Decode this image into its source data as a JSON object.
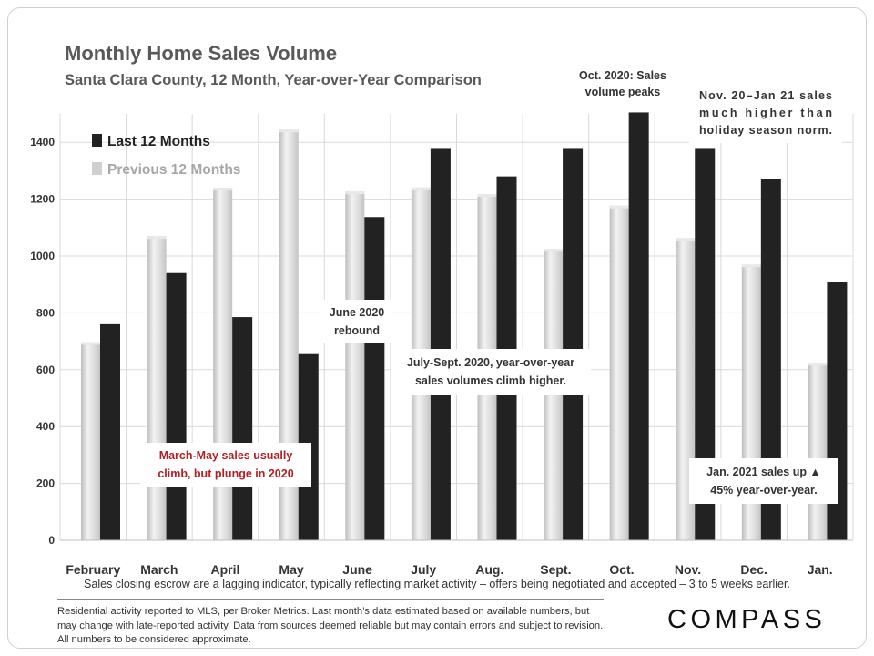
{
  "title": "Monthly Home Sales Volume",
  "subtitle": "Santa Clara County, 12 Month, Year-over-Year  Comparison",
  "colors": {
    "last": "#222222",
    "previous": "#cfcfcf",
    "previous_light": "#f2f2f2",
    "grid": "#d9d9d9",
    "red_text": "#b21f24"
  },
  "chart_data": {
    "type": "bar",
    "categories": [
      "February",
      "March",
      "April",
      "May",
      "June",
      "July",
      "Aug.",
      "Sept.",
      "Oct.",
      "Nov.",
      "Dec.",
      "Jan."
    ],
    "series": [
      {
        "name": "Last 12 Months",
        "values": [
          760,
          940,
          785,
          658,
          1137,
          1380,
          1280,
          1380,
          1505,
          1380,
          1270,
          910
        ]
      },
      {
        "name": "Previous 12 Months",
        "values": [
          697,
          1070,
          1240,
          1445,
          1227,
          1242,
          1218,
          1025,
          1177,
          1063,
          970,
          624
        ]
      }
    ],
    "yticks": [
      0,
      200,
      400,
      600,
      800,
      1000,
      1200,
      1400
    ],
    "ylim": [
      0,
      1500
    ],
    "grid": true,
    "legend": "top-left"
  },
  "annotations": [
    {
      "id": "may-plunge",
      "lines": [
        "March-May sales usually",
        "climb, but plunge in 2020"
      ]
    },
    {
      "id": "june-rebound",
      "lines": [
        "June 2020",
        "rebound"
      ]
    },
    {
      "id": "july-sept",
      "lines": [
        "July-Sept. 2020, year-over-year",
        "sales volumes climb higher."
      ]
    },
    {
      "id": "oct-peak",
      "lines": [
        "Oct. 2020: Sales",
        "volume peaks"
      ]
    },
    {
      "id": "nov-jan",
      "lines": [
        "Nov. 20–Jan 21 sales",
        "much higher than",
        "holiday season norm."
      ]
    },
    {
      "id": "jan-up",
      "lines": [
        "Jan. 2021 sales up ▲",
        "45% year-over-year."
      ]
    }
  ],
  "footnote": "Sales closing escrow are a lagging indicator, typically reflecting market activity – offers being negotiated and accepted – 3 to 5 weeks earlier.",
  "disclaimer": "Residential activity reported to MLS, per Broker Metrics. Last month’s data estimated based on available numbers, but may change with late-reported activity. Data from sources deemed reliable but may contain errors and subject to revision. All numbers to be considered approximate.",
  "logo": "COMPASS"
}
